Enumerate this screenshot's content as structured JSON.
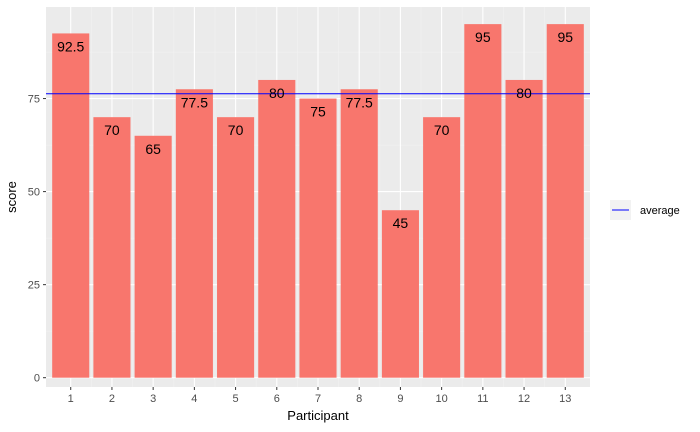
{
  "chart_data": {
    "type": "bar",
    "xlabel": "Participant",
    "ylabel": "score",
    "categories": [
      "1",
      "2",
      "3",
      "4",
      "5",
      "6",
      "7",
      "8",
      "9",
      "10",
      "11",
      "12",
      "13"
    ],
    "values": [
      92.5,
      70,
      65,
      77.5,
      70,
      80,
      75,
      77.5,
      45,
      70,
      95,
      80,
      95
    ],
    "data_labels": [
      "92.5",
      "70",
      "65",
      "77.5",
      "70",
      "80",
      "75",
      "77.5",
      "45",
      "70",
      "95",
      "80",
      "95"
    ],
    "y_ticks": [
      0,
      25,
      50,
      75
    ],
    "ylim": [
      -2.5,
      99.6
    ],
    "reference_line": {
      "name": "average",
      "value": 76.3
    },
    "legend": {
      "position": "right",
      "entries": [
        "average"
      ]
    },
    "grid": true,
    "colors": {
      "bar": "#F8766D",
      "reference_line": "#0000FF",
      "panel_background": "#EBEBEB",
      "grid_major": "#FFFFFF",
      "grid_minor": "#F2F2F2"
    }
  }
}
